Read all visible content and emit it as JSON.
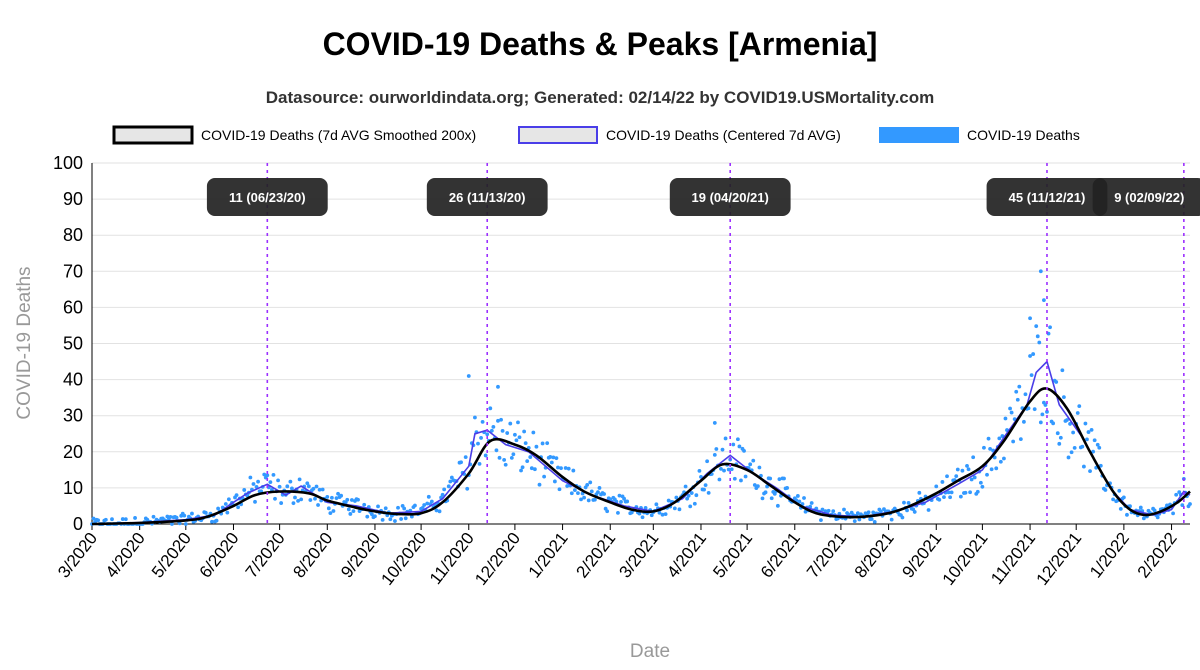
{
  "chart_data": {
    "type": "line",
    "title": "COVID-19 Deaths & Peaks [Armenia]",
    "subtitle": "Datasource: ourworldindata.org; Generated: 02/14/22 by COVID19.USMortality.com",
    "xlabel": "Date",
    "ylabel": "COVID-19 Deaths",
    "ylim": [
      0,
      100
    ],
    "yticks": [
      0,
      10,
      20,
      30,
      40,
      50,
      60,
      70,
      80,
      90,
      100
    ],
    "x_range": [
      "2020-03-01",
      "2022-02-13"
    ],
    "xticks": [
      {
        "date": "2020-03-01",
        "label": "3/2020"
      },
      {
        "date": "2020-04-01",
        "label": "4/2020"
      },
      {
        "date": "2020-05-01",
        "label": "5/2020"
      },
      {
        "date": "2020-06-01",
        "label": "6/2020"
      },
      {
        "date": "2020-07-01",
        "label": "7/2020"
      },
      {
        "date": "2020-08-01",
        "label": "8/2020"
      },
      {
        "date": "2020-09-01",
        "label": "9/2020"
      },
      {
        "date": "2020-10-01",
        "label": "10/2020"
      },
      {
        "date": "2020-11-01",
        "label": "11/2020"
      },
      {
        "date": "2020-12-01",
        "label": "12/2020"
      },
      {
        "date": "2021-01-01",
        "label": "1/2021"
      },
      {
        "date": "2021-02-01",
        "label": "2/2021"
      },
      {
        "date": "2021-03-01",
        "label": "3/2021"
      },
      {
        "date": "2021-04-01",
        "label": "4/2021"
      },
      {
        "date": "2021-05-01",
        "label": "5/2021"
      },
      {
        "date": "2021-06-01",
        "label": "6/2021"
      },
      {
        "date": "2021-07-01",
        "label": "7/2021"
      },
      {
        "date": "2021-08-01",
        "label": "8/2021"
      },
      {
        "date": "2021-09-01",
        "label": "9/2021"
      },
      {
        "date": "2021-10-01",
        "label": "10/2021"
      },
      {
        "date": "2021-11-01",
        "label": "11/2021"
      },
      {
        "date": "2021-12-01",
        "label": "12/2021"
      },
      {
        "date": "2022-01-01",
        "label": "1/2022"
      },
      {
        "date": "2022-02-01",
        "label": "2/2022"
      }
    ],
    "legend": {
      "position": "top",
      "entries": [
        {
          "label": "COVID-19 Deaths (7d AVG Smoothed 200x)",
          "color": "#000000",
          "fill": "#e6e6e6"
        },
        {
          "label": "COVID-19 Deaths (Centered 7d AVG)",
          "color": "#4a3ee8",
          "fill": "#e6e6e6"
        },
        {
          "label": "COVID-19 Deaths",
          "color": "#3399ff",
          "fill": "#3399ff"
        }
      ]
    },
    "series": [
      {
        "name": "COVID-19 Deaths (7d AVG Smoothed 200x)",
        "color": "#000000",
        "points": [
          [
            "2020-03-01",
            0
          ],
          [
            "2020-04-01",
            0.3
          ],
          [
            "2020-05-01",
            1
          ],
          [
            "2020-05-15",
            2
          ],
          [
            "2020-06-01",
            5
          ],
          [
            "2020-06-15",
            8
          ],
          [
            "2020-07-01",
            9
          ],
          [
            "2020-07-20",
            8.5
          ],
          [
            "2020-08-01",
            6.5
          ],
          [
            "2020-08-20",
            4.5
          ],
          [
            "2020-09-01",
            3.5
          ],
          [
            "2020-09-15",
            2.8
          ],
          [
            "2020-10-01",
            3
          ],
          [
            "2020-10-15",
            6
          ],
          [
            "2020-11-01",
            14
          ],
          [
            "2020-11-15",
            23
          ],
          [
            "2020-12-01",
            22
          ],
          [
            "2020-12-15",
            19
          ],
          [
            "2021-01-01",
            13
          ],
          [
            "2021-01-15",
            9
          ],
          [
            "2021-02-01",
            6
          ],
          [
            "2021-02-15",
            4
          ],
          [
            "2021-03-01",
            3.5
          ],
          [
            "2021-03-15",
            6
          ],
          [
            "2021-04-01",
            12
          ],
          [
            "2021-04-15",
            16.5
          ],
          [
            "2021-05-01",
            15
          ],
          [
            "2021-05-15",
            11
          ],
          [
            "2021-06-01",
            6
          ],
          [
            "2021-06-15",
            3
          ],
          [
            "2021-07-01",
            2
          ],
          [
            "2021-07-15",
            2
          ],
          [
            "2021-08-01",
            3
          ],
          [
            "2021-08-15",
            5
          ],
          [
            "2021-09-01",
            8.5
          ],
          [
            "2021-09-15",
            12
          ],
          [
            "2021-10-01",
            16
          ],
          [
            "2021-10-15",
            23
          ],
          [
            "2021-11-01",
            34
          ],
          [
            "2021-11-12",
            37.5
          ],
          [
            "2021-11-25",
            32
          ],
          [
            "2021-12-10",
            20
          ],
          [
            "2021-12-25",
            9
          ],
          [
            "2022-01-05",
            4
          ],
          [
            "2022-01-15",
            2.5
          ],
          [
            "2022-01-25",
            3.5
          ],
          [
            "2022-02-05",
            6
          ],
          [
            "2022-02-13",
            9
          ]
        ]
      },
      {
        "name": "COVID-19 Deaths (Centered 7d AVG)",
        "color": "#4a3ee8",
        "points": [
          [
            "2020-03-01",
            0
          ],
          [
            "2020-04-01",
            0.4
          ],
          [
            "2020-05-01",
            1.2
          ],
          [
            "2020-05-20",
            2.5
          ],
          [
            "2020-06-01",
            6
          ],
          [
            "2020-06-10",
            8.5
          ],
          [
            "2020-06-23",
            11
          ],
          [
            "2020-07-05",
            8
          ],
          [
            "2020-07-15",
            10.5
          ],
          [
            "2020-08-01",
            6
          ],
          [
            "2020-08-20",
            5
          ],
          [
            "2020-09-10",
            3
          ],
          [
            "2020-10-01",
            3.5
          ],
          [
            "2020-10-15",
            7
          ],
          [
            "2020-11-01",
            16
          ],
          [
            "2020-11-05",
            25
          ],
          [
            "2020-11-13",
            26
          ],
          [
            "2020-11-25",
            22
          ],
          [
            "2020-12-10",
            20
          ],
          [
            "2021-01-01",
            12
          ],
          [
            "2021-01-20",
            8
          ],
          [
            "2021-02-10",
            5
          ],
          [
            "2021-03-01",
            3.5
          ],
          [
            "2021-03-20",
            7
          ],
          [
            "2021-04-05",
            14
          ],
          [
            "2021-04-20",
            19
          ],
          [
            "2021-05-05",
            14
          ],
          [
            "2021-05-20",
            10
          ],
          [
            "2021-06-05",
            5
          ],
          [
            "2021-06-25",
            2.5
          ],
          [
            "2021-07-15",
            2
          ],
          [
            "2021-08-05",
            3.5
          ],
          [
            "2021-08-25",
            6
          ],
          [
            "2021-09-15",
            11
          ],
          [
            "2021-10-01",
            15
          ],
          [
            "2021-10-15",
            24
          ],
          [
            "2021-10-30",
            33
          ],
          [
            "2021-11-05",
            42
          ],
          [
            "2021-11-12",
            45
          ],
          [
            "2021-11-20",
            33
          ],
          [
            "2021-12-05",
            24
          ],
          [
            "2021-12-15",
            16
          ],
          [
            "2021-12-25",
            9
          ],
          [
            "2022-01-05",
            4
          ],
          [
            "2022-01-20",
            2.5
          ],
          [
            "2022-02-01",
            4
          ],
          [
            "2022-02-09",
            9
          ],
          [
            "2022-02-13",
            8
          ]
        ]
      },
      {
        "name": "COVID-19 Deaths",
        "color": "#3399ff",
        "marker": "dot",
        "generated_from": "COVID-19 Deaths (Centered 7d AVG)",
        "scatter_spread": 0.35,
        "sample_points": [
          [
            "2021-11-08",
            70
          ],
          [
            "2021-11-10",
            62
          ],
          [
            "2021-11-01",
            57
          ],
          [
            "2020-11-01",
            41
          ],
          [
            "2020-11-20",
            38
          ],
          [
            "2021-04-10",
            28
          ]
        ]
      }
    ],
    "peaks": [
      {
        "date": "2020-06-23",
        "label": "11 (06/23/20)"
      },
      {
        "date": "2020-11-13",
        "label": "26 (11/13/20)"
      },
      {
        "date": "2021-04-20",
        "label": "19 (04/20/21)"
      },
      {
        "date": "2021-11-12",
        "label": "45 (11/12/21)"
      },
      {
        "date": "2022-02-09",
        "label": "9 (02/09/22)"
      }
    ],
    "grid": true
  }
}
